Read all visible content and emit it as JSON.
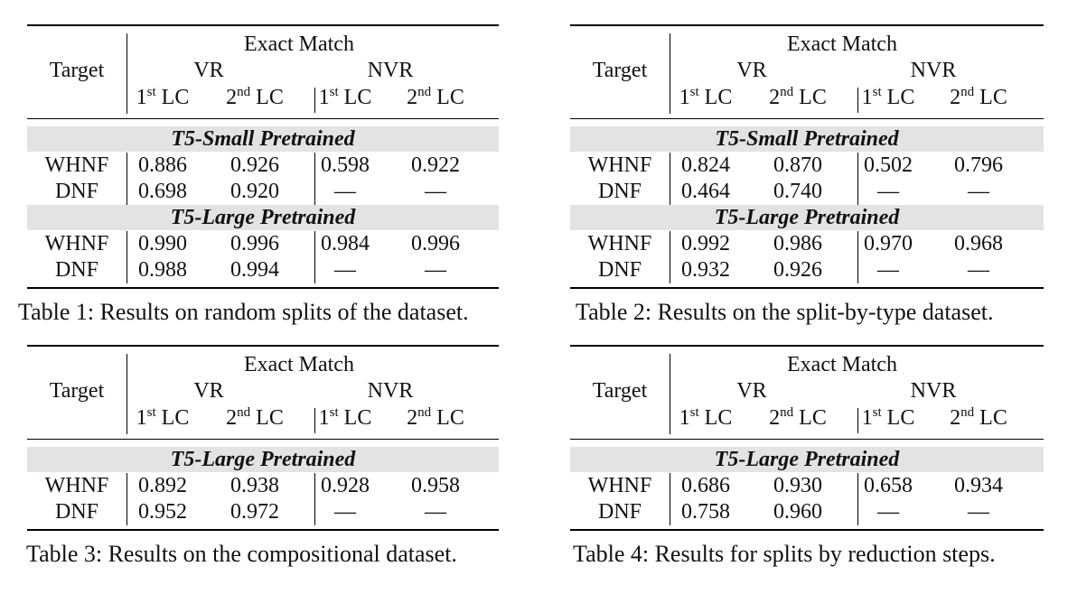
{
  "header": {
    "target": "Target",
    "exact_match": "Exact Match",
    "vr": "VR",
    "nvr": "NVR",
    "lc_suffix": "LC",
    "first_sup": "st",
    "first_num": "1",
    "second_sup": "nd",
    "second_num": "2"
  },
  "table1": {
    "groups": [
      {
        "name": "T5-Small Pretrained",
        "rows": [
          {
            "target": "WHNF",
            "v": [
              "0.886",
              "0.926",
              "0.598",
              "0.922"
            ]
          },
          {
            "target": "DNF",
            "v": [
              "0.698",
              "0.920",
              "—",
              "—"
            ]
          }
        ]
      },
      {
        "name": "T5-Large Pretrained",
        "rows": [
          {
            "target": "WHNF",
            "v": [
              "0.990",
              "0.996",
              "0.984",
              "0.996"
            ]
          },
          {
            "target": "DNF",
            "v": [
              "0.988",
              "0.994",
              "—",
              "—"
            ]
          }
        ]
      }
    ],
    "caption": "Table 1: Results on random splits of the dataset."
  },
  "table2": {
    "groups": [
      {
        "name": "T5-Small Pretrained",
        "rows": [
          {
            "target": "WHNF",
            "v": [
              "0.824",
              "0.870",
              "0.502",
              "0.796"
            ]
          },
          {
            "target": "DNF",
            "v": [
              "0.464",
              "0.740",
              "—",
              "—"
            ]
          }
        ]
      },
      {
        "name": "T5-Large Pretrained",
        "rows": [
          {
            "target": "WHNF",
            "v": [
              "0.992",
              "0.986",
              "0.970",
              "0.968"
            ]
          },
          {
            "target": "DNF",
            "v": [
              "0.932",
              "0.926",
              "—",
              "—"
            ]
          }
        ]
      }
    ],
    "caption": "Table 2: Results on the split-by-type dataset."
  },
  "table3": {
    "groups": [
      {
        "name": "T5-Large Pretrained",
        "rows": [
          {
            "target": "WHNF",
            "v": [
              "0.892",
              "0.938",
              "0.928",
              "0.958"
            ]
          },
          {
            "target": "DNF",
            "v": [
              "0.952",
              "0.972",
              "—",
              "—"
            ]
          }
        ]
      }
    ],
    "caption": "Table 3: Results on the compositional dataset."
  },
  "table4": {
    "groups": [
      {
        "name": "T5-Large Pretrained",
        "rows": [
          {
            "target": "WHNF",
            "v": [
              "0.686",
              "0.930",
              "0.658",
              "0.934"
            ]
          },
          {
            "target": "DNF",
            "v": [
              "0.758",
              "0.960",
              "—",
              "—"
            ]
          }
        ]
      }
    ],
    "caption": "Table 4: Results for splits by reduction steps."
  }
}
